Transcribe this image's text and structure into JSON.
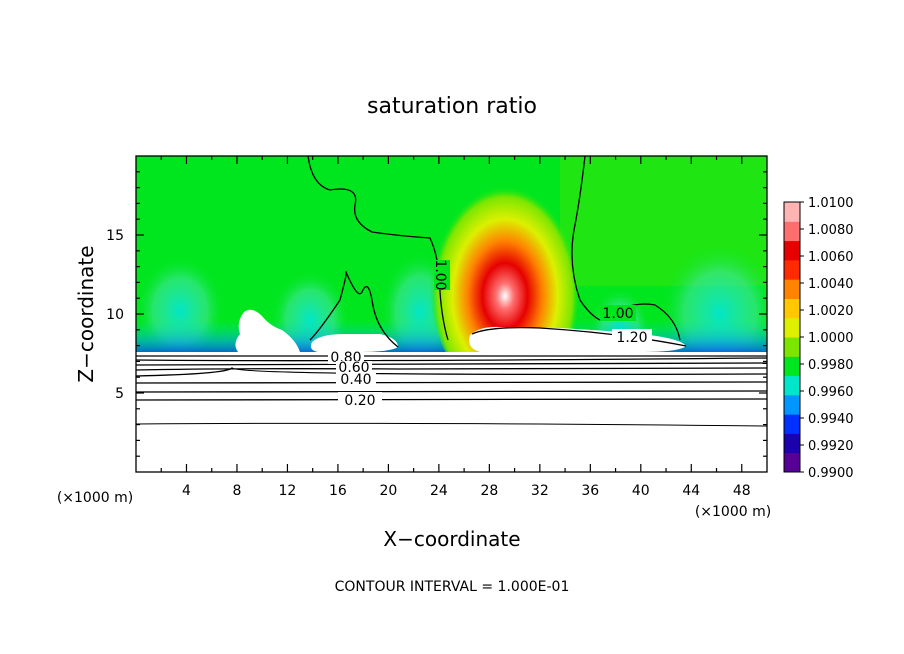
{
  "chart_data": {
    "type": "heatmap",
    "title": "saturation ratio",
    "xlabel": "X−coordinate",
    "ylabel": "Z−coordinate",
    "x_unit_label": "(×1000 m)",
    "y_unit_label": "(×1000 m)",
    "footer": "CONTOUR INTERVAL = 1.000E-01",
    "xlim": [
      0,
      50
    ],
    "ylim": [
      0,
      20
    ],
    "x_ticks": [
      4,
      8,
      12,
      16,
      20,
      24,
      28,
      32,
      36,
      40,
      44,
      48
    ],
    "y_ticks": [
      5,
      10,
      15
    ],
    "colorbar": {
      "min": 0.99,
      "max": 1.01,
      "tick_labels": [
        "1.0100",
        "1.0080",
        "1.0060",
        "1.0040",
        "1.0020",
        "1.0000",
        "0.9980",
        "0.9960",
        "0.9940",
        "0.9920",
        "0.9900"
      ],
      "colors": [
        "#560096",
        "#1c00ae",
        "#0030ff",
        "#0096ff",
        "#00e6c8",
        "#00e61e",
        "#7ce600",
        "#dcf000",
        "#ffc800",
        "#ff8200",
        "#ff2a00",
        "#e60000",
        "#ff6e6e",
        "#ffb4b4"
      ]
    },
    "contour_labels": [
      "1.00",
      "1.00",
      "1.20",
      "0.80",
      "0.60",
      "0.40",
      "0.20"
    ]
  }
}
